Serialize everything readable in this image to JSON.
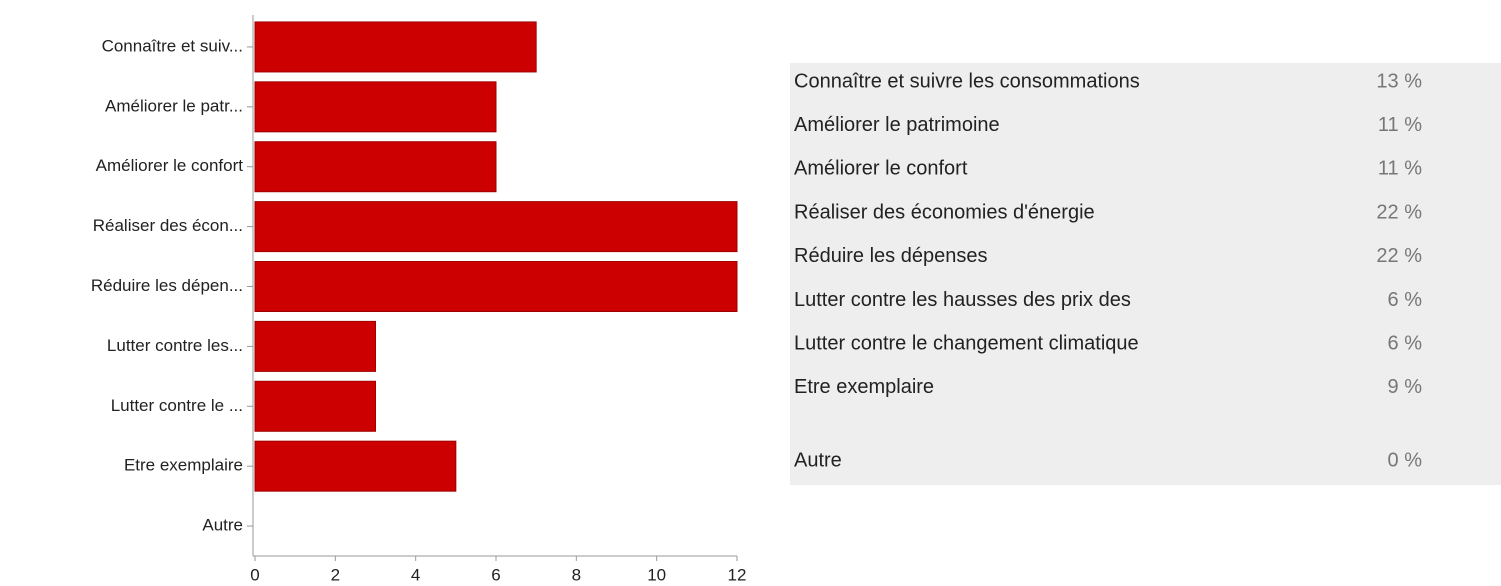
{
  "chart_data": {
    "type": "hbar",
    "categories": [
      "Connaître et suiv...",
      "Améliorer le patr...",
      "Améliorer le confort",
      "Réaliser des écon...",
      "Réduire les dépen...",
      "Lutter contre les...",
      "Lutter contre le ...",
      "Etre exemplaire",
      "Autre"
    ],
    "values": [
      7,
      6,
      6,
      12,
      12,
      3,
      3,
      5,
      0
    ],
    "color": "#cc0000",
    "xlim": [
      0,
      12
    ],
    "xticks": [
      0,
      2,
      4,
      6,
      8,
      10,
      12
    ]
  },
  "table": {
    "rows": [
      [
        "Connaître et suivre les consommations",
        "13 %"
      ],
      [
        "Améliorer le patrimoine",
        "11 %"
      ],
      [
        "Améliorer le confort",
        "11 %"
      ],
      [
        "Réaliser des économies d'énergie",
        "22 %"
      ],
      [
        "Réduire les dépenses",
        "22 %"
      ],
      [
        "Lutter contre les hausses des prix des",
        "6 %"
      ],
      [
        "Lutter contre le changement climatique",
        "6 %"
      ],
      [
        "Etre exemplaire",
        "9 %"
      ],
      [
        "Autre",
        "0 %"
      ]
    ]
  }
}
